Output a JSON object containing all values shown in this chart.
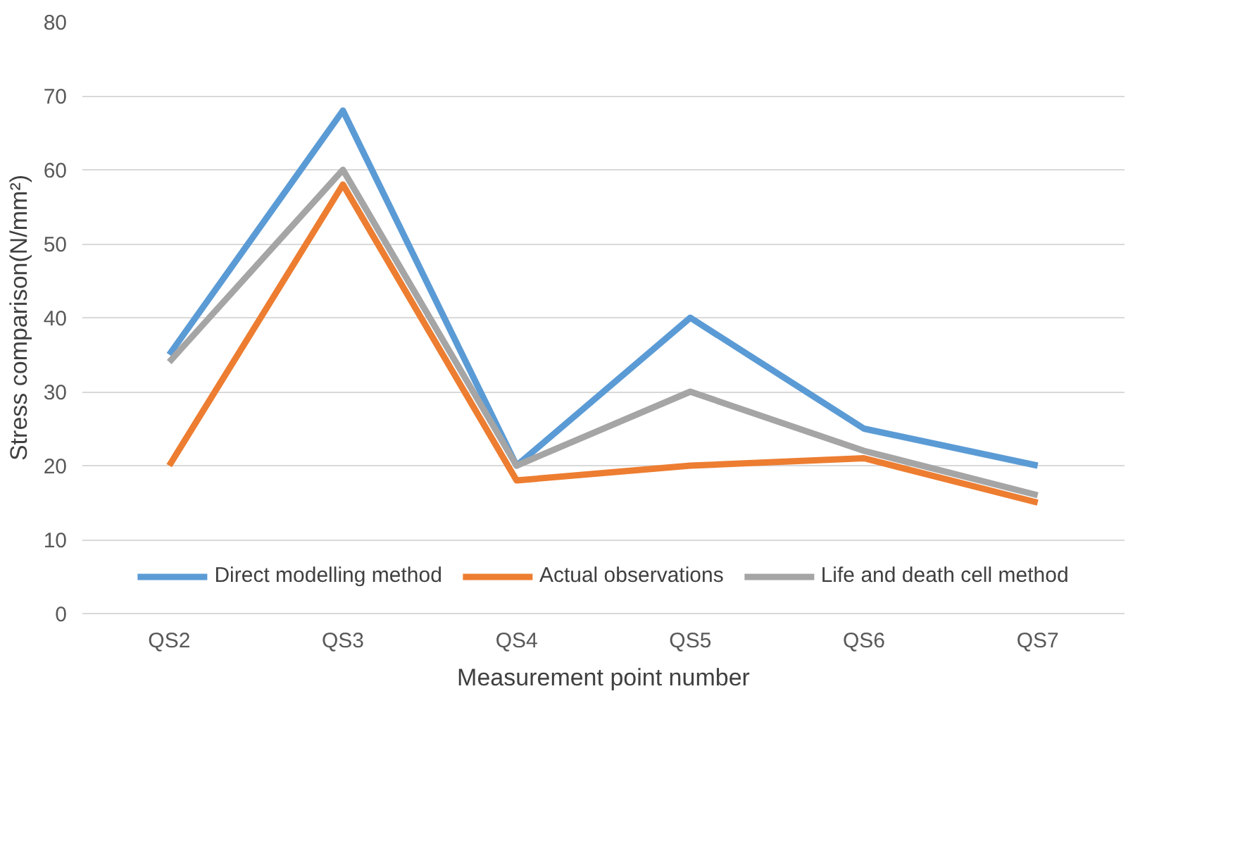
{
  "chart_data": {
    "type": "line",
    "xlabel": "Measurement point number",
    "ylabel": "Stress comparison(N/mm²)",
    "categories": [
      "QS2",
      "QS3",
      "QS4",
      "QS5",
      "QS6",
      "QS7"
    ],
    "series": [
      {
        "name": "Direct modelling method",
        "color": "#5b9bd5",
        "values": [
          35,
          68,
          20,
          40,
          25,
          20
        ]
      },
      {
        "name": "Actual observations",
        "color": "#ed7d31",
        "values": [
          20,
          58,
          18,
          20,
          21,
          15
        ]
      },
      {
        "name": "Life and death cell method",
        "color": "#a5a5a5",
        "values": [
          34,
          60,
          20,
          30,
          22,
          16
        ]
      }
    ],
    "ylim": [
      0,
      80
    ],
    "yticks": [
      0,
      10,
      20,
      30,
      40,
      50,
      60,
      70,
      80
    ],
    "grid": "y",
    "legend": "bottom",
    "marker": "none",
    "line_style": "solid"
  }
}
